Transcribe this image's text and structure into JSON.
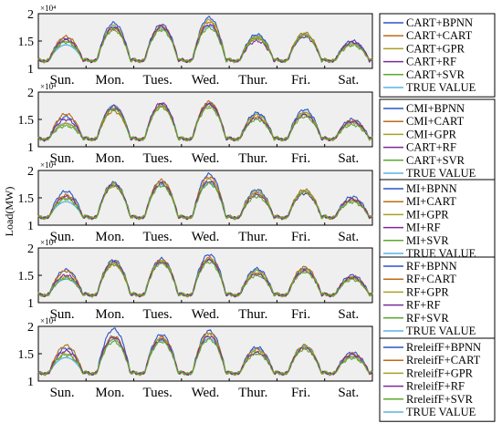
{
  "ylabel": "Load(MW)",
  "days": [
    "Sun.",
    "Mon.",
    "Tues.",
    "Wed.",
    "Thur.",
    "Fri.",
    "Sat."
  ],
  "yticks": [
    "1",
    "1.5",
    "2"
  ],
  "exponent": "×10⁴",
  "colors": [
    "#2b55c9",
    "#c06a12",
    "#a8a020",
    "#7a2a9c",
    "#5da82f",
    "#5bb2e6"
  ],
  "chart_data": [
    {
      "type": "line",
      "ylim": [
        1,
        2
      ],
      "yscale_factor": 10000,
      "categories": [
        "Sun.",
        "Mon.",
        "Tues.",
        "Wed.",
        "Thur.",
        "Fri.",
        "Sat."
      ],
      "daily_peak": {
        "TRUE VALUE": [
          1.43,
          1.76,
          1.74,
          1.78,
          1.6,
          1.63,
          1.45
        ],
        "CART+BPNN": [
          1.55,
          1.83,
          1.8,
          1.93,
          1.62,
          1.6,
          1.5
        ],
        "CART+CART": [
          1.58,
          1.72,
          1.78,
          1.85,
          1.55,
          1.65,
          1.47
        ],
        "CART+GPR": [
          1.5,
          1.78,
          1.72,
          1.88,
          1.58,
          1.62,
          1.44
        ],
        "CART+RF": [
          1.52,
          1.75,
          1.76,
          1.8,
          1.5,
          1.58,
          1.48
        ],
        "CART+SVR": [
          1.48,
          1.7,
          1.7,
          1.74,
          1.55,
          1.6,
          1.42
        ]
      },
      "series": [
        {
          "name": "CART+BPNN"
        },
        {
          "name": "CART+CART"
        },
        {
          "name": "CART+GPR"
        },
        {
          "name": "CART+RF"
        },
        {
          "name": "CART+SVR"
        },
        {
          "name": "TRUE VALUE"
        }
      ]
    },
    {
      "type": "line",
      "ylim": [
        1,
        2
      ],
      "yscale_factor": 10000,
      "categories": [
        "Sun.",
        "Mon.",
        "Tues.",
        "Wed.",
        "Thur.",
        "Fri.",
        "Sat."
      ],
      "daily_peak": {
        "TRUE VALUE": [
          1.43,
          1.76,
          1.74,
          1.78,
          1.6,
          1.63,
          1.45
        ],
        "CMI+BPNN": [
          1.55,
          1.7,
          1.78,
          1.8,
          1.62,
          1.68,
          1.5
        ],
        "CMI+CART": [
          1.6,
          1.65,
          1.75,
          1.82,
          1.55,
          1.6,
          1.48
        ],
        "CMI+GPR": [
          1.42,
          1.72,
          1.76,
          1.76,
          1.58,
          1.62,
          1.44
        ],
        "CART+RF": [
          1.5,
          1.74,
          1.8,
          1.78,
          1.52,
          1.58,
          1.46
        ],
        "CART+SVR": [
          1.38,
          1.68,
          1.72,
          1.72,
          1.5,
          1.55,
          1.4
        ]
      },
      "series": [
        {
          "name": "CMI+BPNN"
        },
        {
          "name": "CMI+CART"
        },
        {
          "name": "CMI+GPR"
        },
        {
          "name": "CART+RF"
        },
        {
          "name": "CART+SVR"
        },
        {
          "name": "TRUE VALUE"
        }
      ]
    },
    {
      "type": "line",
      "ylim": [
        1,
        2
      ],
      "yscale_factor": 10000,
      "categories": [
        "Sun.",
        "Mon.",
        "Tues.",
        "Wed.",
        "Thur.",
        "Fri.",
        "Sat."
      ],
      "daily_peak": {
        "TRUE VALUE": [
          1.43,
          1.76,
          1.74,
          1.78,
          1.6,
          1.63,
          1.45
        ],
        "MI+BPNN": [
          1.62,
          1.78,
          1.8,
          1.93,
          1.65,
          1.6,
          1.52
        ],
        "MI+CART": [
          1.55,
          1.72,
          1.82,
          1.88,
          1.58,
          1.65,
          1.48
        ],
        "MI+GPR": [
          1.5,
          1.76,
          1.78,
          1.84,
          1.62,
          1.62,
          1.45
        ],
        "MI+RF": [
          1.52,
          1.74,
          1.76,
          1.8,
          1.55,
          1.58,
          1.47
        ],
        "MI+SVR": [
          1.48,
          1.72,
          1.72,
          1.76,
          1.52,
          1.6,
          1.42
        ]
      },
      "series": [
        {
          "name": "MI+BPNN"
        },
        {
          "name": "MI+CART"
        },
        {
          "name": "MI+GPR"
        },
        {
          "name": "MI+RF"
        },
        {
          "name": "MI+SVR"
        },
        {
          "name": "TRUE VALUE"
        }
      ]
    },
    {
      "type": "line",
      "ylim": [
        1,
        2
      ],
      "yscale_factor": 10000,
      "categories": [
        "Sun.",
        "Mon.",
        "Tues.",
        "Wed.",
        "Thur.",
        "Fri.",
        "Sat."
      ],
      "daily_peak": {
        "TRUE VALUE": [
          1.43,
          1.76,
          1.74,
          1.78,
          1.6,
          1.63,
          1.45
        ],
        "RF+BPNN": [
          1.6,
          1.78,
          1.8,
          1.88,
          1.62,
          1.62,
          1.5
        ],
        "RF+CART": [
          1.58,
          1.7,
          1.78,
          1.82,
          1.55,
          1.65,
          1.48
        ],
        "RF+GPR": [
          1.48,
          1.76,
          1.76,
          1.8,
          1.58,
          1.6,
          1.45
        ],
        "RF+RF": [
          1.5,
          1.74,
          1.74,
          1.78,
          1.52,
          1.58,
          1.46
        ],
        "RF+SVR": [
          1.45,
          1.7,
          1.72,
          1.74,
          1.5,
          1.56,
          1.42
        ]
      },
      "series": [
        {
          "name": "RF+BPNN"
        },
        {
          "name": "RF+CART"
        },
        {
          "name": "RF+GPR"
        },
        {
          "name": "RF+RF"
        },
        {
          "name": "RF+SVR"
        },
        {
          "name": "TRUE VALUE"
        }
      ]
    },
    {
      "type": "line",
      "ylim": [
        1,
        2
      ],
      "yscale_factor": 10000,
      "categories": [
        "Sun.",
        "Mon.",
        "Tues.",
        "Wed.",
        "Thur.",
        "Fri.",
        "Sat."
      ],
      "daily_peak": {
        "TRUE VALUE": [
          1.43,
          1.76,
          1.74,
          1.78,
          1.6,
          1.63,
          1.45
        ],
        "RreleifF+BPNN": [
          1.6,
          1.95,
          1.85,
          1.92,
          1.62,
          1.65,
          1.52
        ],
        "RreleifF+CART": [
          1.65,
          1.82,
          1.8,
          1.88,
          1.58,
          1.62,
          1.5
        ],
        "RreleifF+GPR": [
          1.5,
          1.78,
          1.78,
          1.85,
          1.55,
          1.65,
          1.45
        ],
        "RreleifF+RF": [
          1.55,
          1.8,
          1.76,
          1.82,
          1.52,
          1.6,
          1.48
        ],
        "RreleifF+SVR": [
          1.48,
          1.72,
          1.72,
          1.76,
          1.5,
          1.58,
          1.42
        ]
      },
      "series": [
        {
          "name": "RreleifF+BPNN"
        },
        {
          "name": "RreleifF+CART"
        },
        {
          "name": "RreleifF+GPR"
        },
        {
          "name": "RreleifF+RF"
        },
        {
          "name": "RreleifF+SVR"
        },
        {
          "name": "TRUE VALUE"
        }
      ]
    }
  ]
}
